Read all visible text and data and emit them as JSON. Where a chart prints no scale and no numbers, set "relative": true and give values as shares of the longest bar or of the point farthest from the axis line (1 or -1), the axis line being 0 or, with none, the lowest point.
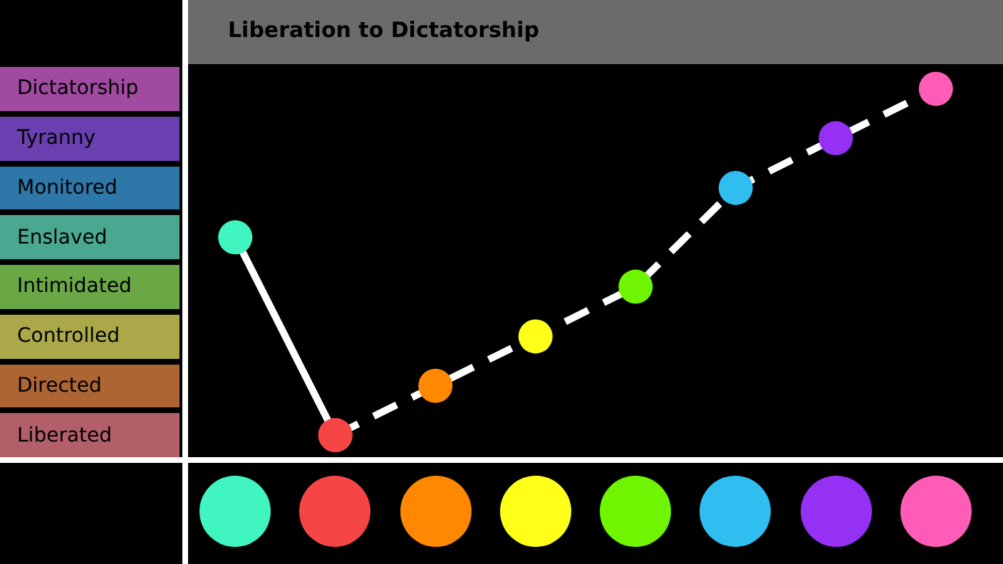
{
  "chart_data": {
    "type": "line",
    "title": "Liberation to Dictatorship",
    "categories": [
      null,
      null,
      null,
      null,
      null,
      null,
      null,
      null
    ],
    "relative": true,
    "series": [
      {
        "values": [
          0.6,
          0.067,
          null,
          null,
          null,
          null,
          null,
          null
        ],
        "colors": [
          "#40f5c0",
          "#f54545",
          "#ff8800",
          "#ffff1a",
          "#70f500",
          "#30bdf0",
          "#9530f5",
          "#ff5cb8"
        ],
        "color": "#ffffff",
        "line_style": "solid"
      },
      {
        "values": [
          null,
          0.067,
          0.2,
          0.333,
          0.467,
          0.733,
          0.867,
          1
        ],
        "colors": [
          "#40f5c0",
          "#f54545",
          "#ff8800",
          "#ffff1a",
          "#70f500",
          "#30bdf0",
          "#9530f5",
          "#ff5cb8"
        ],
        "color": "#ffffff",
        "line_style": "dashed"
      }
    ],
    "annotations": [
      "Dictatorship",
      "Tyranny",
      "Monitored",
      "Enslaved",
      "Intimidated",
      "Controlled",
      "Directed",
      "Liberated"
    ],
    "legend": false,
    "marker": "circle"
  }
}
